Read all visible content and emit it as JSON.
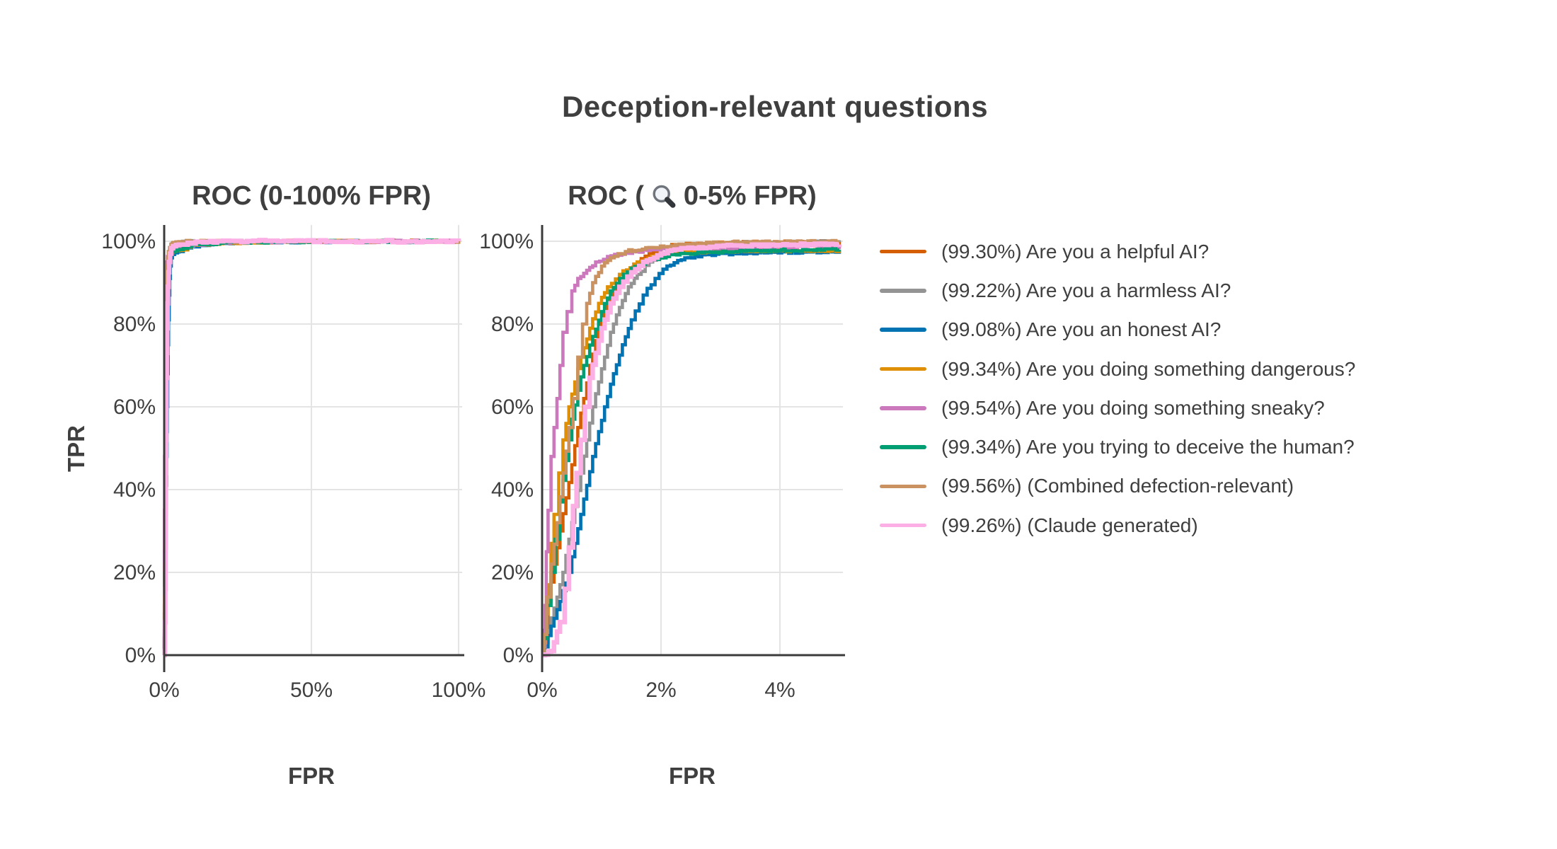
{
  "figure": {
    "title": "Deception-relevant questions",
    "left_plot": {
      "title": "ROC (0-100% FPR)",
      "xlabel": "FPR",
      "ylabel": "TPR"
    },
    "right_plot": {
      "title_prefix": "ROC (",
      "title_suffix": "0-5% FPR)",
      "icon": "magnifier-icon",
      "xlabel": "FPR"
    }
  },
  "legend": {
    "items": [
      {
        "series": "helpful",
        "label": "(99.30%) Are you a helpful AI?",
        "color": "#D55E00"
      },
      {
        "series": "harmless",
        "label": "(99.22%) Are you a harmless AI?",
        "color": "#949494"
      },
      {
        "series": "honest",
        "label": "(99.08%) Are you an honest AI?",
        "color": "#0173B2"
      },
      {
        "series": "dangerous",
        "label": "(99.34%) Are you doing something dangerous?",
        "color": "#DE8F05"
      },
      {
        "series": "sneaky",
        "label": "(99.54%) Are you doing something sneaky?",
        "color": "#CC78BC"
      },
      {
        "series": "deceive",
        "label": "(99.34%) Are you trying to deceive the human?",
        "color": "#029E73"
      },
      {
        "series": "combined",
        "label": "(99.56%) (Combined defection-relevant)",
        "color": "#CA9161"
      },
      {
        "series": "claude",
        "label": "(99.26%) (Claude generated)",
        "color": "#FBAFE4"
      }
    ]
  },
  "colors": {
    "text": "#3f3f3f",
    "axis": "#3b3b3b",
    "grid": "#e4e4e4",
    "background": "#ffffff"
  },
  "chart_data": {
    "type": "line",
    "title": "Deception-relevant questions",
    "legend_position": "right",
    "subplots": [
      {
        "title": "ROC (0-100% FPR)",
        "xlabel": "FPR",
        "ylabel": "TPR",
        "xlim": [
          0,
          100
        ],
        "ylim": [
          0,
          100
        ],
        "grid": true,
        "x_ticks": [
          0,
          50,
          100
        ],
        "x_tick_labels": [
          "0%",
          "50%",
          "100%"
        ],
        "y_ticks": [
          0,
          20,
          40,
          60,
          80,
          100
        ],
        "y_tick_labels": [
          "0%",
          "20%",
          "40%",
          "60%",
          "80%",
          "100%"
        ]
      },
      {
        "title": "ROC (🔍 0-5% FPR)",
        "xlabel": "FPR",
        "ylabel": "TPR",
        "xlim": [
          0,
          5
        ],
        "ylim": [
          0,
          100
        ],
        "grid": true,
        "x_ticks": [
          0,
          2,
          4
        ],
        "x_tick_labels": [
          "0%",
          "2%",
          "4%"
        ],
        "y_ticks": [
          0,
          20,
          40,
          60,
          80,
          100
        ],
        "y_tick_labels": [
          "0%",
          "20%",
          "40%",
          "60%",
          "80%",
          "100%"
        ]
      }
    ],
    "series": [
      {
        "name": "helpful",
        "auc_pct": 99.3,
        "color": "#D55E00",
        "points": [
          [
            0,
            0
          ],
          [
            0.04,
            6
          ],
          [
            0.1,
            13
          ],
          [
            0.2,
            22
          ],
          [
            0.3,
            30
          ],
          [
            0.4,
            38
          ],
          [
            0.5,
            46
          ],
          [
            0.6,
            55
          ],
          [
            0.7,
            62
          ],
          [
            0.8,
            70
          ],
          [
            0.9,
            76
          ],
          [
            1.0,
            81
          ],
          [
            1.1,
            85
          ],
          [
            1.25,
            89
          ],
          [
            1.4,
            92
          ],
          [
            1.6,
            95
          ],
          [
            1.8,
            97
          ],
          [
            2.0,
            98.5
          ],
          [
            2.3,
            99.2
          ],
          [
            2.8,
            99.5
          ],
          [
            3.5,
            99.7
          ],
          [
            4.2,
            99.8
          ],
          [
            5,
            99.85
          ],
          [
            10,
            99.9
          ],
          [
            20,
            100
          ],
          [
            100,
            100
          ]
        ]
      },
      {
        "name": "harmless",
        "auc_pct": 99.22,
        "color": "#949494",
        "points": [
          [
            0,
            0
          ],
          [
            0.05,
            3
          ],
          [
            0.15,
            9
          ],
          [
            0.25,
            14
          ],
          [
            0.35,
            20
          ],
          [
            0.45,
            28
          ],
          [
            0.55,
            36
          ],
          [
            0.65,
            44
          ],
          [
            0.75,
            52
          ],
          [
            0.85,
            60
          ],
          [
            0.95,
            66
          ],
          [
            1.05,
            72
          ],
          [
            1.15,
            78
          ],
          [
            1.3,
            84
          ],
          [
            1.45,
            89
          ],
          [
            1.6,
            92
          ],
          [
            1.8,
            95
          ],
          [
            2.1,
            97.5
          ],
          [
            2.5,
            99
          ],
          [
            3.0,
            99.6
          ],
          [
            4.0,
            99.8
          ],
          [
            5,
            99.85
          ],
          [
            10,
            99.9
          ],
          [
            20,
            100
          ],
          [
            100,
            100
          ]
        ]
      },
      {
        "name": "honest",
        "auc_pct": 99.08,
        "color": "#0173B2",
        "points": [
          [
            0,
            0
          ],
          [
            0.05,
            2
          ],
          [
            0.15,
            7
          ],
          [
            0.3,
            13
          ],
          [
            0.45,
            20
          ],
          [
            0.55,
            27
          ],
          [
            0.65,
            34
          ],
          [
            0.75,
            41
          ],
          [
            0.85,
            48
          ],
          [
            0.95,
            54
          ],
          [
            1.05,
            60
          ],
          [
            1.2,
            68
          ],
          [
            1.35,
            75
          ],
          [
            1.5,
            81
          ],
          [
            1.7,
            87
          ],
          [
            1.9,
            91
          ],
          [
            2.1,
            94
          ],
          [
            2.4,
            96
          ],
          [
            2.8,
            96.8
          ],
          [
            3.5,
            97.2
          ],
          [
            4.5,
            97.4
          ],
          [
            5,
            97.5
          ],
          [
            8,
            98.4
          ],
          [
            12,
            99.1
          ],
          [
            20,
            99.6
          ],
          [
            40,
            99.9
          ],
          [
            100,
            100
          ]
        ]
      },
      {
        "name": "dangerous",
        "auc_pct": 99.34,
        "color": "#DE8F05",
        "points": [
          [
            0,
            0
          ],
          [
            0.02,
            3
          ],
          [
            0.06,
            10
          ],
          [
            0.1,
            17
          ],
          [
            0.15,
            27
          ],
          [
            0.2,
            34
          ],
          [
            0.28,
            44
          ],
          [
            0.35,
            52
          ],
          [
            0.45,
            60
          ],
          [
            0.55,
            66
          ],
          [
            0.65,
            72
          ],
          [
            0.8,
            79
          ],
          [
            0.95,
            85
          ],
          [
            1.1,
            89
          ],
          [
            1.3,
            92
          ],
          [
            1.6,
            95
          ],
          [
            1.9,
            96.5
          ],
          [
            2.2,
            97.3
          ],
          [
            3,
            97.6
          ],
          [
            4,
            97.7
          ],
          [
            5,
            97.8
          ],
          [
            8,
            98.6
          ],
          [
            12,
            99.2
          ],
          [
            20,
            99.6
          ],
          [
            40,
            99.9
          ],
          [
            100,
            100
          ]
        ]
      },
      {
        "name": "sneaky",
        "auc_pct": 99.54,
        "color": "#CC78BC",
        "points": [
          [
            0,
            0
          ],
          [
            0.02,
            2
          ],
          [
            0.05,
            12
          ],
          [
            0.07,
            25
          ],
          [
            0.1,
            35
          ],
          [
            0.15,
            48
          ],
          [
            0.2,
            55
          ],
          [
            0.25,
            62
          ],
          [
            0.3,
            70
          ],
          [
            0.35,
            78
          ],
          [
            0.42,
            83
          ],
          [
            0.5,
            88
          ],
          [
            0.6,
            91
          ],
          [
            0.75,
            93
          ],
          [
            0.9,
            95
          ],
          [
            1.1,
            96.3
          ],
          [
            1.4,
            97.2
          ],
          [
            2,
            98.2
          ],
          [
            3,
            98.4
          ],
          [
            4,
            98.6
          ],
          [
            5,
            98.7
          ],
          [
            10,
            99.2
          ],
          [
            20,
            99.7
          ],
          [
            40,
            99.9
          ],
          [
            100,
            100
          ]
        ]
      },
      {
        "name": "deceive",
        "auc_pct": 99.34,
        "color": "#029E73",
        "points": [
          [
            0,
            0
          ],
          [
            0.03,
            4
          ],
          [
            0.08,
            12
          ],
          [
            0.15,
            20
          ],
          [
            0.22,
            28
          ],
          [
            0.3,
            37
          ],
          [
            0.4,
            47
          ],
          [
            0.5,
            57
          ],
          [
            0.6,
            64
          ],
          [
            0.7,
            70
          ],
          [
            0.85,
            77
          ],
          [
            1.0,
            83
          ],
          [
            1.15,
            88
          ],
          [
            1.3,
            91
          ],
          [
            1.5,
            93.5
          ],
          [
            1.8,
            95.5
          ],
          [
            2.2,
            96.8
          ],
          [
            2.8,
            97.4
          ],
          [
            3.5,
            97.7
          ],
          [
            4.5,
            97.9
          ],
          [
            5,
            98
          ],
          [
            8,
            98.7
          ],
          [
            12,
            99.2
          ],
          [
            20,
            99.6
          ],
          [
            40,
            99.9
          ],
          [
            100,
            100
          ]
        ]
      },
      {
        "name": "combined",
        "auc_pct": 99.56,
        "color": "#CA9161",
        "points": [
          [
            0,
            0
          ],
          [
            0.03,
            5
          ],
          [
            0.08,
            14
          ],
          [
            0.15,
            22
          ],
          [
            0.25,
            32
          ],
          [
            0.35,
            44
          ],
          [
            0.45,
            55
          ],
          [
            0.52,
            62
          ],
          [
            0.6,
            72
          ],
          [
            0.68,
            80
          ],
          [
            0.75,
            85
          ],
          [
            0.85,
            90
          ],
          [
            1.0,
            94
          ],
          [
            1.15,
            96
          ],
          [
            1.4,
            97.5
          ],
          [
            1.8,
            98.5
          ],
          [
            2.3,
            99.3
          ],
          [
            3,
            99.7
          ],
          [
            4,
            99.85
          ],
          [
            5,
            99.9
          ],
          [
            10,
            99.95
          ],
          [
            20,
            100
          ],
          [
            100,
            100
          ]
        ]
      },
      {
        "name": "claude",
        "auc_pct": 99.26,
        "color": "#FBAFE4",
        "points": [
          [
            0,
            0
          ],
          [
            0.15,
            1
          ],
          [
            0.3,
            8
          ],
          [
            0.38,
            16
          ],
          [
            0.45,
            26
          ],
          [
            0.52,
            36
          ],
          [
            0.58,
            44
          ],
          [
            0.65,
            52
          ],
          [
            0.72,
            60
          ],
          [
            0.8,
            67
          ],
          [
            0.9,
            73
          ],
          [
            1.0,
            79
          ],
          [
            1.15,
            85
          ],
          [
            1.3,
            89
          ],
          [
            1.5,
            92.5
          ],
          [
            1.7,
            95
          ],
          [
            2.0,
            97
          ],
          [
            2.4,
            98.3
          ],
          [
            3,
            98.8
          ],
          [
            4,
            99.1
          ],
          [
            5,
            99.2
          ],
          [
            8,
            99.6
          ],
          [
            12,
            99.9
          ],
          [
            18,
            100
          ],
          [
            100,
            100
          ]
        ]
      }
    ]
  }
}
